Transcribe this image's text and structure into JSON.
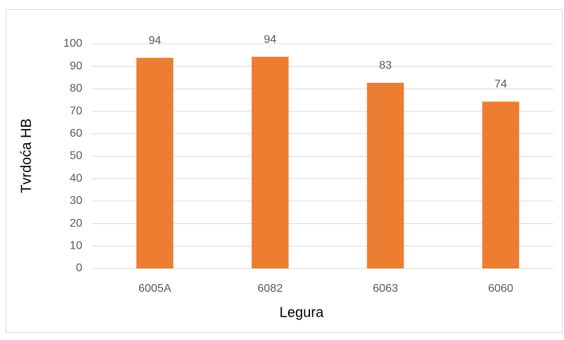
{
  "chart_data": {
    "type": "bar",
    "categories": [
      "6005A",
      "6082",
      "6063",
      "6060"
    ],
    "values": [
      93.8,
      94.3,
      82.7,
      74.3
    ],
    "value_labels": [
      "94",
      "94",
      "83",
      "74"
    ],
    "color": "#ed7d31",
    "xlabel": "Legura",
    "ylabel": "Tvrdoća HB",
    "ylim": [
      0,
      100
    ],
    "yticks": [
      0,
      10,
      20,
      30,
      40,
      50,
      60,
      70,
      80,
      90,
      100
    ],
    "grid": true
  }
}
